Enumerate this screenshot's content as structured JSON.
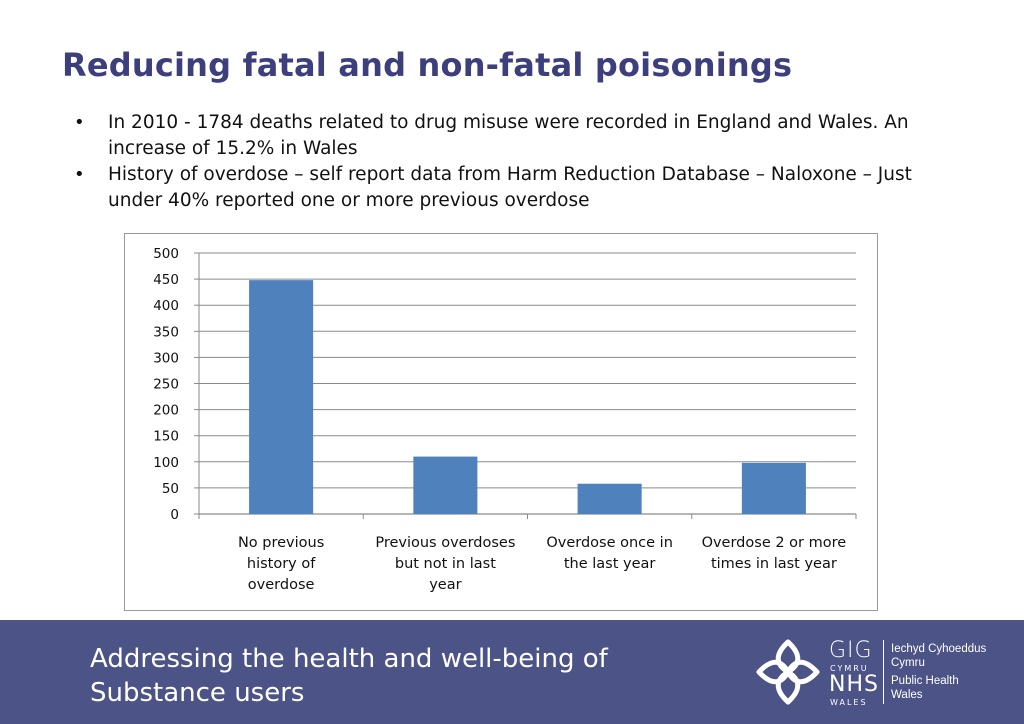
{
  "slide": {
    "title": "Reducing fatal and non-fatal poisonings",
    "bullets": [
      "In 2010 - 1784 deaths related to drug misuse were recorded in England and Wales.  An increase of 15.2% in Wales",
      "History of overdose – self report data from Harm Reduction Database – Naloxone – Just under 40% reported one or more previous overdose"
    ],
    "bullet_glyph": "•"
  },
  "chart_data": {
    "type": "bar",
    "categories": [
      "No previous history of overdose",
      "Previous overdoses but not in last year",
      "Overdose once in the last year",
      "Overdose 2 or more times in last year"
    ],
    "values": [
      448,
      110,
      58,
      98
    ],
    "title": "",
    "xlabel": "",
    "ylabel": "",
    "ylim": [
      0,
      500
    ],
    "yticks": [
      0,
      50,
      100,
      150,
      200,
      250,
      300,
      350,
      400,
      450,
      500
    ],
    "bar_color": "#4f81bd",
    "grid": true,
    "legend": "none"
  },
  "footer": {
    "text_line1": "Addressing the health and well-being of",
    "text_line2": "Substance users",
    "background_color": "#4c5386",
    "logo": {
      "icon": "celtic-knot-icon",
      "gig": "GIG",
      "cymru": "CYMRU",
      "nhs": "NHS",
      "wales": "WALES",
      "lines": [
        "Iechyd Cyhoeddus",
        "Cymru",
        "Public Health",
        "Wales"
      ]
    }
  },
  "colors": {
    "title": "#3d3f7d",
    "bar": "#4f81bd"
  }
}
